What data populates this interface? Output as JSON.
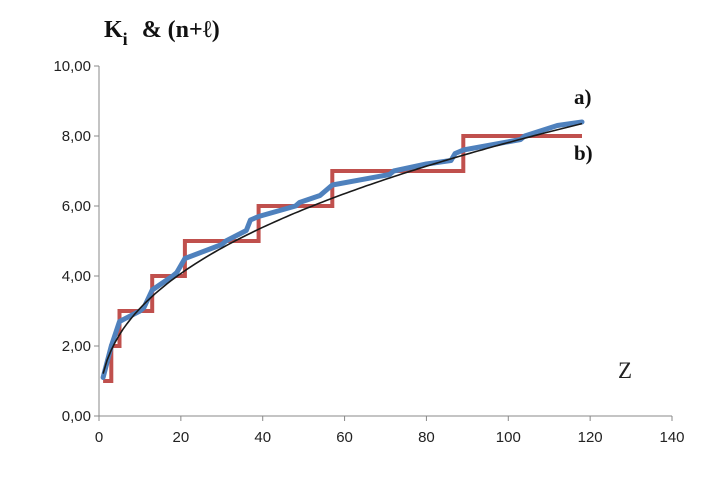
{
  "chart_data": {
    "type": "line",
    "title": "K",
    "title_subscript": "i",
    "title_suffix": "&  (n+ℓ)",
    "xlabel": "Z",
    "xlim": [
      0,
      140
    ],
    "ylim": [
      0,
      10
    ],
    "x_ticks": [
      "0",
      "20",
      "40",
      "60",
      "80",
      "100",
      "120",
      "140"
    ],
    "y_ticks": [
      "0,00",
      "2,00",
      "4,00",
      "6,00",
      "8,00",
      "10,00"
    ],
    "grid": false,
    "colors": {
      "series_a": "#4f81bd",
      "series_b": "#c0504d",
      "trend": "#1a1a1a"
    },
    "series": [
      {
        "name": "a)",
        "x": [
          1,
          3,
          5,
          10,
          11,
          13,
          18,
          19,
          21,
          30,
          31,
          36,
          37,
          39,
          48,
          49,
          54,
          55,
          57,
          71,
          72,
          80,
          86,
          87,
          89,
          103,
          104,
          112,
          118
        ],
        "y": [
          1.1,
          2.0,
          2.7,
          3.0,
          3.1,
          3.6,
          4.0,
          4.1,
          4.5,
          4.9,
          5.0,
          5.3,
          5.6,
          5.7,
          6.0,
          6.1,
          6.3,
          6.4,
          6.6,
          6.9,
          7.0,
          7.2,
          7.3,
          7.5,
          7.6,
          7.9,
          8.0,
          8.3,
          8.4
        ]
      },
      {
        "name": "b)",
        "x": [
          1,
          3,
          3,
          5,
          5,
          13,
          13,
          21,
          21,
          39,
          39,
          57,
          57,
          89,
          89,
          118
        ],
        "y": [
          1,
          1,
          2,
          2,
          3,
          3,
          4,
          4,
          5,
          5,
          6,
          6,
          7,
          7,
          8,
          8
        ]
      }
    ],
    "trendline": {
      "type": "power",
      "a": 1.21,
      "b": 0.405,
      "x_range": [
        1,
        118
      ]
    }
  }
}
